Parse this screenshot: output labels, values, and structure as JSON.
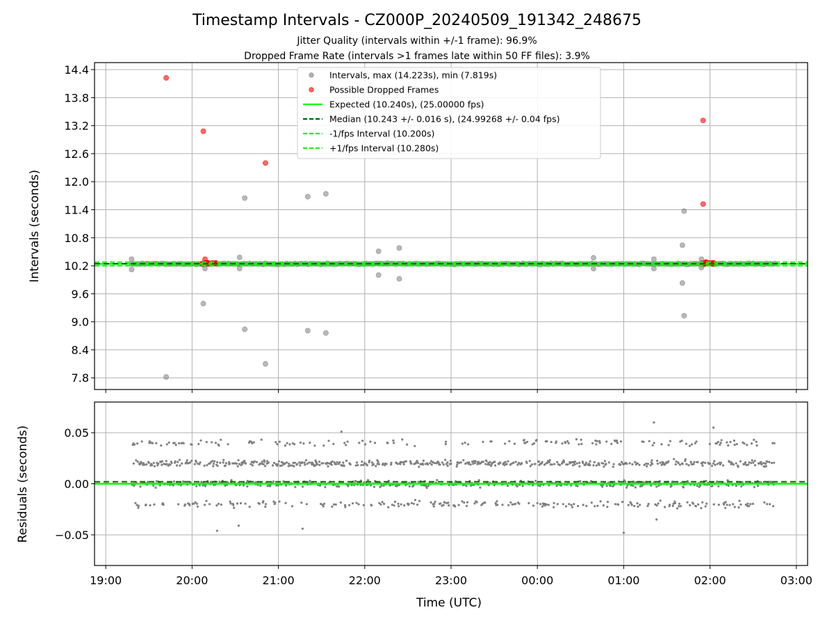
{
  "figure": {
    "title": "Timestamp Intervals - CZ000P_20240509_191342_248675",
    "subtitle_1": "Jitter Quality (intervals within +/-1 frame): 96.9%",
    "subtitle_2": "Dropped Frame Rate (intervals >1 frames late within 50 FF files): 3.9%"
  },
  "colors": {
    "scatter_gray": "#808080",
    "dropped_red": "#ff0000",
    "expected_green": "#00ff00",
    "median_darkgreen": "#006400",
    "bound_green": "#22ee22",
    "grid": "#b0b0b0"
  },
  "chart_data": [
    {
      "type": "scatter",
      "panel": "intervals",
      "ylabel": "Intervals (seconds)",
      "xlabel": "",
      "xlim_hours": [
        18.87,
        27.13
      ],
      "ylim": [
        7.55,
        14.55
      ],
      "grid": true,
      "legend_position": "top-center",
      "yticks": [
        7.8,
        8.4,
        9.0,
        9.6,
        10.2,
        10.8,
        11.4,
        12.0,
        12.6,
        13.2,
        13.8,
        14.4
      ],
      "ytick_labels": [
        "7.8",
        "8.4",
        "9.0",
        "9.6",
        "10.2",
        "10.8",
        "11.4",
        "12.0",
        "12.6",
        "13.2",
        "13.8",
        "14.4"
      ],
      "xticks_hours": [
        19,
        20,
        21,
        22,
        23,
        24,
        25,
        26,
        27
      ],
      "time_range_hours": [
        19.3,
        26.75
      ],
      "nominal_interval": 10.24,
      "legend": [
        {
          "label": "Intervals, max (14.223s), min (7.819s)",
          "symbol": "dot-gray"
        },
        {
          "label": "Possible Dropped Frames",
          "symbol": "dot-red"
        },
        {
          "label": "Expected (10.240s), (25.00000 fps)",
          "symbol": "line-green"
        },
        {
          "label": "Median (10.243 +/- 0.016 s), (24.99268 +/- 0.04 fps)",
          "symbol": "dash-darkgreen"
        },
        {
          "label": "-1/fps Interval (10.200s)",
          "symbol": "dash-green"
        },
        {
          "label": "+1/fps Interval (10.280s)",
          "symbol": "dash-green"
        }
      ],
      "lines": {
        "expected": 10.24,
        "median": 10.243,
        "minus_one_fps": 10.2,
        "plus_one_fps": 10.28
      },
      "dropped_cluster_ranges_hours": [
        [
          20.12,
          20.28
        ],
        [
          25.9,
          26.05
        ]
      ],
      "outliers": [
        {
          "x": 19.7,
          "y": 14.223,
          "dropped": true
        },
        {
          "x": 19.7,
          "y": 7.819,
          "dropped": false
        },
        {
          "x": 20.13,
          "y": 13.08,
          "dropped": true
        },
        {
          "x": 20.13,
          "y": 9.39,
          "dropped": false
        },
        {
          "x": 20.15,
          "y": 10.14,
          "dropped": false
        },
        {
          "x": 20.15,
          "y": 10.34,
          "dropped": true
        },
        {
          "x": 20.55,
          "y": 10.38,
          "dropped": false
        },
        {
          "x": 20.55,
          "y": 10.14,
          "dropped": false
        },
        {
          "x": 20.61,
          "y": 11.65,
          "dropped": false
        },
        {
          "x": 20.61,
          "y": 8.84,
          "dropped": false
        },
        {
          "x": 20.85,
          "y": 12.4,
          "dropped": true
        },
        {
          "x": 20.85,
          "y": 8.1,
          "dropped": false
        },
        {
          "x": 19.3,
          "y": 10.34,
          "dropped": false
        },
        {
          "x": 19.3,
          "y": 10.12,
          "dropped": false
        },
        {
          "x": 21.34,
          "y": 11.68,
          "dropped": false
        },
        {
          "x": 21.34,
          "y": 8.81,
          "dropped": false
        },
        {
          "x": 21.55,
          "y": 11.74,
          "dropped": false
        },
        {
          "x": 21.55,
          "y": 8.76,
          "dropped": false
        },
        {
          "x": 22.16,
          "y": 10.51,
          "dropped": false
        },
        {
          "x": 22.16,
          "y": 10.0,
          "dropped": false
        },
        {
          "x": 22.4,
          "y": 10.58,
          "dropped": false
        },
        {
          "x": 22.4,
          "y": 9.92,
          "dropped": false
        },
        {
          "x": 24.65,
          "y": 10.37,
          "dropped": false
        },
        {
          "x": 24.65,
          "y": 10.14,
          "dropped": false
        },
        {
          "x": 25.35,
          "y": 10.34,
          "dropped": false
        },
        {
          "x": 25.35,
          "y": 10.14,
          "dropped": false
        },
        {
          "x": 25.68,
          "y": 10.64,
          "dropped": false
        },
        {
          "x": 25.68,
          "y": 9.83,
          "dropped": false
        },
        {
          "x": 25.7,
          "y": 11.37,
          "dropped": false
        },
        {
          "x": 25.7,
          "y": 9.13,
          "dropped": false
        },
        {
          "x": 25.92,
          "y": 13.31,
          "dropped": true
        },
        {
          "x": 25.92,
          "y": 11.52,
          "dropped": true
        },
        {
          "x": 25.9,
          "y": 10.34,
          "dropped": false
        },
        {
          "x": 25.9,
          "y": 10.16,
          "dropped": false
        }
      ]
    },
    {
      "type": "scatter",
      "panel": "residuals",
      "ylabel": "Residuals (seconds)",
      "xlabel": "Time (UTC)",
      "xlim_hours": [
        18.87,
        27.13
      ],
      "ylim": [
        -0.08,
        0.08
      ],
      "grid": true,
      "yticks": [
        -0.05,
        0.0,
        0.05
      ],
      "ytick_labels": [
        "−0.05",
        "0.00",
        "0.05"
      ],
      "xticks_hours": [
        19,
        20,
        21,
        22,
        23,
        24,
        25,
        26,
        27
      ],
      "xtick_labels": [
        "19:00",
        "20:00",
        "21:00",
        "22:00",
        "23:00",
        "00:00",
        "01:00",
        "02:00",
        "03:00"
      ],
      "lines": {
        "zero": 0.0,
        "median_offset": 0.002
      },
      "residual_levels": [
        -0.02,
        0.0,
        0.02,
        0.04
      ],
      "notable_points": [
        {
          "x": 20.29,
          "y": -0.046
        },
        {
          "x": 20.54,
          "y": -0.041
        },
        {
          "x": 21.28,
          "y": -0.044
        },
        {
          "x": 21.73,
          "y": 0.051
        },
        {
          "x": 25.0,
          "y": -0.048
        },
        {
          "x": 25.35,
          "y": 0.06
        },
        {
          "x": 25.38,
          "y": -0.035
        },
        {
          "x": 26.04,
          "y": 0.055
        }
      ]
    }
  ]
}
